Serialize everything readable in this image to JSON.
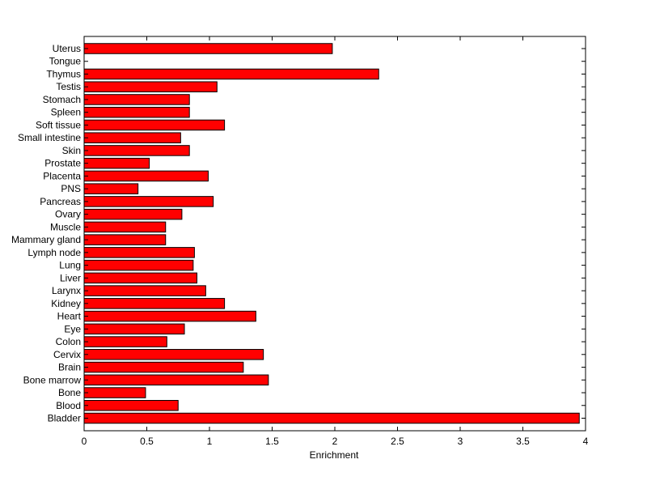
{
  "chart_data": {
    "type": "bar",
    "orientation": "horizontal",
    "title": "",
    "xlabel": "Enrichment",
    "ylabel": "",
    "xlim": [
      0,
      4
    ],
    "xticks": [
      "0",
      "0.5",
      "1",
      "1.5",
      "2",
      "2.5",
      "3",
      "3.5",
      "4"
    ],
    "bar_color": "#ff0000",
    "bar_edge_color": "#000000",
    "grid": false,
    "legend": "none",
    "categories": [
      "Uterus",
      "Tongue",
      "Thymus",
      "Testis",
      "Stomach",
      "Spleen",
      "Soft tissue",
      "Small intestine",
      "Skin",
      "Prostate",
      "Placenta",
      "PNS",
      "Pancreas",
      "Ovary",
      "Muscle",
      "Mammary gland",
      "Lymph node",
      "Lung",
      "Liver",
      "Larynx",
      "Kidney",
      "Heart",
      "Eye",
      "Colon",
      "Cervix",
      "Brain",
      "Bone marrow",
      "Bone",
      "Blood",
      "Bladder"
    ],
    "values": [
      1.98,
      0,
      2.35,
      1.06,
      0.84,
      0.84,
      1.12,
      0.77,
      0.84,
      0.52,
      0.99,
      0.43,
      1.03,
      0.78,
      0.65,
      0.65,
      0.88,
      0.87,
      0.9,
      0.97,
      1.12,
      1.37,
      0.8,
      0.66,
      1.43,
      1.27,
      1.47,
      0.49,
      0.75,
      3.95
    ]
  }
}
